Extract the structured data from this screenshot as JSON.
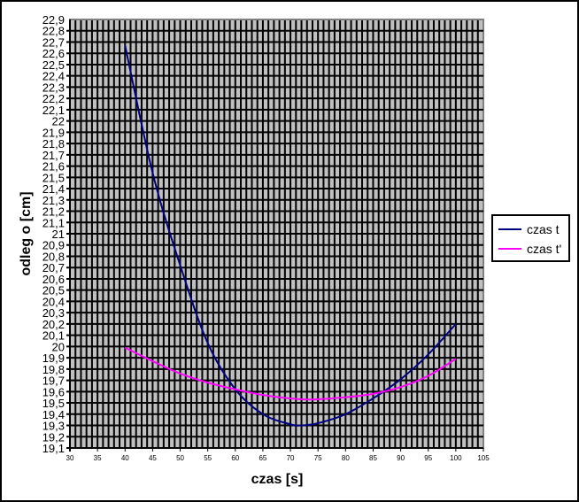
{
  "chart_data": {
    "type": "line",
    "title": "",
    "xlabel": "czas [s]",
    "ylabel": "odleg o  [cm]",
    "xlim": [
      30,
      105
    ],
    "ylim": [
      19.1,
      22.9
    ],
    "x_ticks": [
      "30",
      "35",
      "40",
      "45",
      "50",
      "55",
      "60",
      "65",
      "70",
      "75",
      "80",
      "85",
      "90",
      "95",
      "100",
      "105"
    ],
    "y_ticks": [
      "19,1",
      "19,2",
      "19,3",
      "19,4",
      "19,5",
      "19,6",
      "19,7",
      "19,8",
      "19,9",
      "20",
      "20,1",
      "20,2",
      "20,3",
      "20,4",
      "20,5",
      "20,6",
      "20,7",
      "20,8",
      "20,9",
      "21",
      "21,1",
      "21,2",
      "21,3",
      "21,4",
      "21,5",
      "21,6",
      "21,7",
      "21,8",
      "21,9",
      "22",
      "22,1",
      "22,2",
      "22,3",
      "22,4",
      "22,5",
      "22,6",
      "22,7",
      "22,8",
      "22,9"
    ],
    "grid": true,
    "legend_position": "right",
    "series": [
      {
        "name": "czas t",
        "color": "#000080",
        "x": [
          40,
          45,
          50,
          55,
          60,
          65,
          70,
          72,
          75,
          80,
          85,
          90,
          95,
          100
        ],
        "y": [
          22.67,
          21.54,
          20.72,
          20.03,
          19.62,
          19.4,
          19.31,
          19.3,
          19.32,
          19.4,
          19.54,
          19.71,
          19.93,
          20.2
        ]
      },
      {
        "name": "czas t'",
        "color": "#ff00ff",
        "x": [
          40,
          45,
          50,
          55,
          60,
          65,
          70,
          74,
          80,
          85,
          90,
          95,
          100
        ],
        "y": [
          19.99,
          19.87,
          19.76,
          19.68,
          19.62,
          19.57,
          19.54,
          19.53,
          19.55,
          19.58,
          19.64,
          19.74,
          19.89
        ]
      }
    ]
  },
  "legend": {
    "items": [
      {
        "label": "czas t",
        "color": "#000080"
      },
      {
        "label": "czas t'",
        "color": "#ff00ff"
      }
    ]
  },
  "style": {
    "plot_bg": "#c0c0c0",
    "grid_color": "#000000",
    "border_color": "#808080"
  }
}
